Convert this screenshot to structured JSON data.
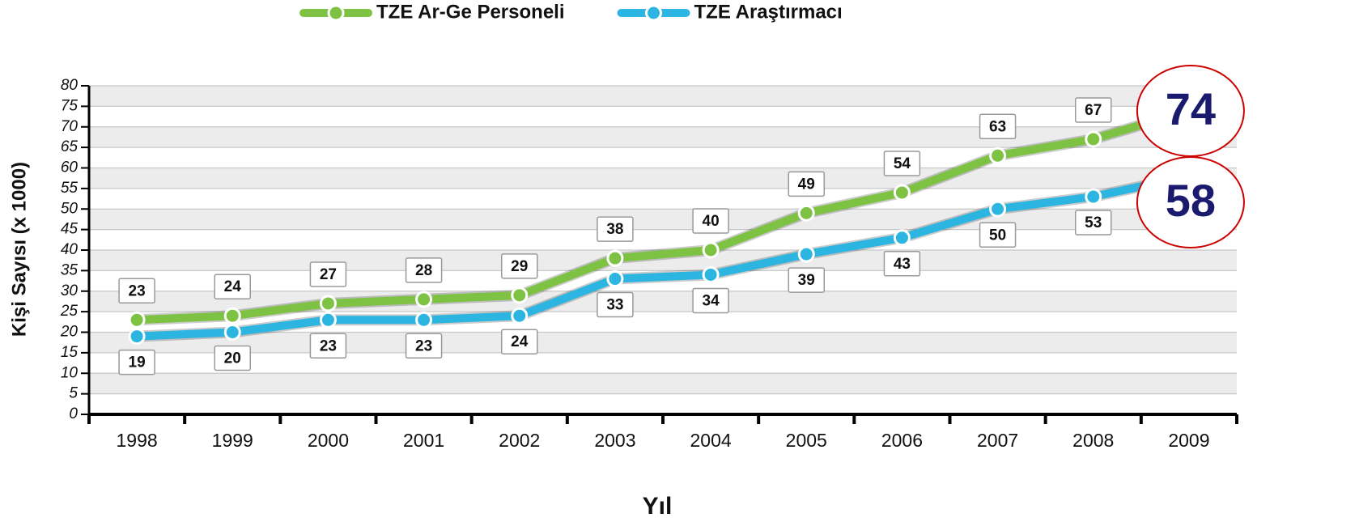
{
  "chart_data": {
    "type": "line",
    "y_label": "Kişi Sayısı (x 1000)",
    "x_label": "Yıl",
    "categories": [
      "1998",
      "1999",
      "2000",
      "2001",
      "2002",
      "2003",
      "2004",
      "2005",
      "2006",
      "2007",
      "2008",
      "2009"
    ],
    "series": [
      {
        "name": "TZE Ar-Ge Personeli",
        "color": "#7dc242",
        "values": [
          23,
          24,
          27,
          28,
          29,
          38,
          40,
          49,
          54,
          63,
          67,
          74
        ]
      },
      {
        "name": "TZE Araştırmacı",
        "color": "#2cb5e0",
        "values": [
          19,
          20,
          23,
          23,
          24,
          33,
          34,
          39,
          43,
          50,
          53,
          58
        ]
      }
    ],
    "ylim": [
      0,
      80
    ],
    "yticks": [
      0,
      5,
      10,
      15,
      20,
      25,
      30,
      35,
      40,
      45,
      50,
      55,
      60,
      65,
      70,
      75,
      80
    ],
    "grid": true,
    "legend": "top"
  }
}
